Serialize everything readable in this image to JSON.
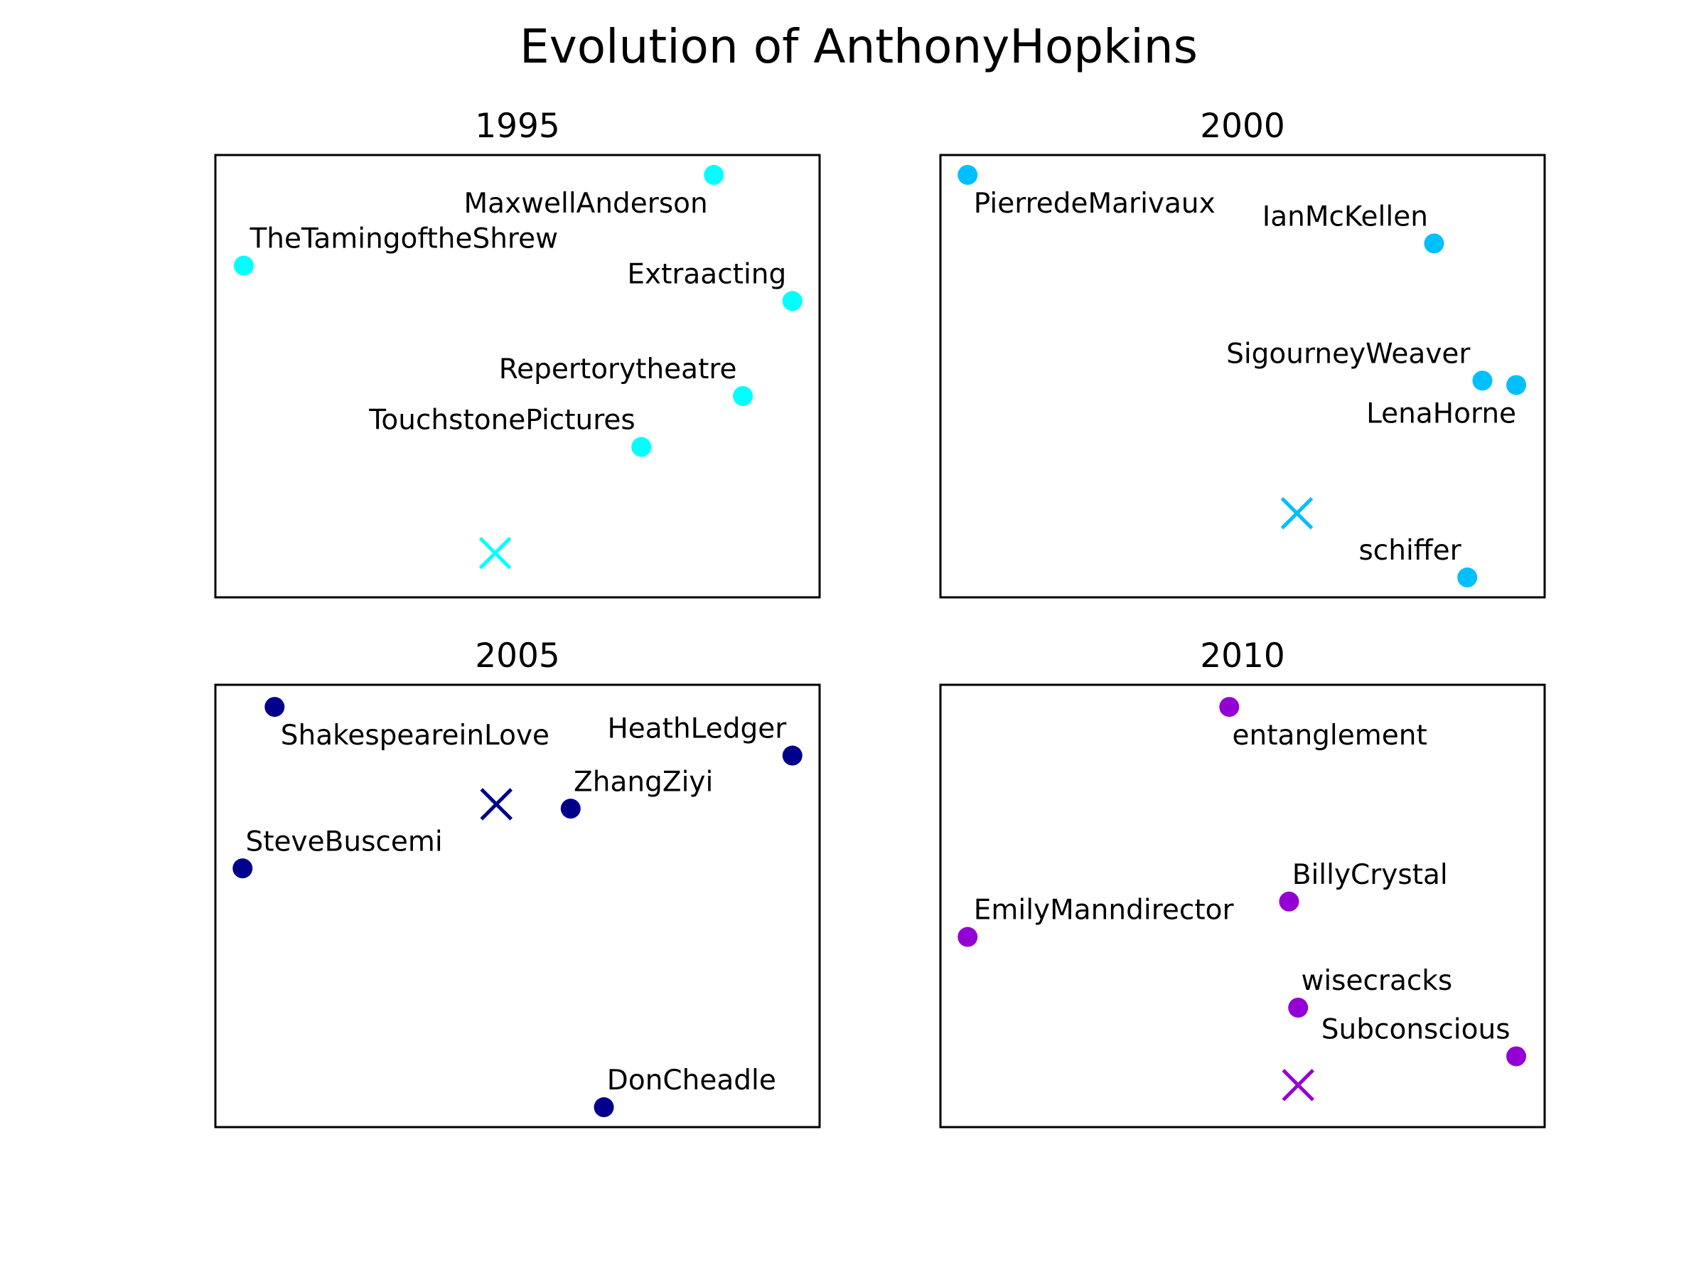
{
  "chart_data": {
    "type": "scatter",
    "title": "Evolution of AnthonyHopkins",
    "grid": false,
    "axes_visible": false,
    "panels": [
      {
        "title": "1995",
        "color": "#00FFFF",
        "xlim": [
          0,
          1
        ],
        "ylim": [
          0,
          1
        ],
        "target": {
          "x": 0.463,
          "y": 0.1
        },
        "points": [
          {
            "label": "MaxwellAnderson",
            "x": 0.825,
            "y": 0.955,
            "anchor": "end",
            "dx": -0.01,
            "dy": -0.04
          },
          {
            "label": "TheTamingoftheShrew",
            "x": 0.047,
            "y": 0.75,
            "anchor": "start",
            "dx": 0.01,
            "dy": 0.04
          },
          {
            "label": "Extraacting",
            "x": 0.955,
            "y": 0.67,
            "anchor": "end",
            "dx": -0.01,
            "dy": 0.04
          },
          {
            "label": "Repertorytheatre",
            "x": 0.873,
            "y": 0.455,
            "anchor": "end",
            "dx": -0.01,
            "dy": 0.04
          },
          {
            "label": "TouchstonePictures",
            "x": 0.705,
            "y": 0.34,
            "anchor": "end",
            "dx": -0.01,
            "dy": 0.04
          }
        ]
      },
      {
        "title": "2000",
        "color": "#00BFFF",
        "xlim": [
          0,
          1
        ],
        "ylim": [
          0,
          1
        ],
        "target": {
          "x": 0.59,
          "y": 0.19
        },
        "points": [
          {
            "label": "PierredeMarivaux",
            "x": 0.045,
            "y": 0.955,
            "anchor": "start",
            "dx": 0.01,
            "dy": -0.04
          },
          {
            "label": "IanMcKellen",
            "x": 0.817,
            "y": 0.8,
            "anchor": "end",
            "dx": -0.01,
            "dy": 0.04
          },
          {
            "label": "SigourneyWeaver",
            "x": 0.897,
            "y": 0.49,
            "anchor": "end",
            "dx": -0.02,
            "dy": 0.04
          },
          {
            "label": "LenaHorne",
            "x": 0.953,
            "y": 0.48,
            "anchor": "end",
            "dx": 0.0,
            "dy": -0.04
          },
          {
            "label": "schiffer",
            "x": 0.872,
            "y": 0.045,
            "anchor": "end",
            "dx": -0.01,
            "dy": 0.04
          }
        ]
      },
      {
        "title": "2005",
        "color": "#00008B",
        "xlim": [
          0,
          1
        ],
        "ylim": [
          0,
          1
        ],
        "target": {
          "x": 0.465,
          "y": 0.73
        },
        "points": [
          {
            "label": "ShakespeareinLove",
            "x": 0.098,
            "y": 0.95,
            "anchor": "start",
            "dx": 0.01,
            "dy": -0.04
          },
          {
            "label": "HeathLedger",
            "x": 0.955,
            "y": 0.84,
            "anchor": "end",
            "dx": -0.01,
            "dy": 0.04
          },
          {
            "label": "ZhangZiyi",
            "x": 0.588,
            "y": 0.72,
            "anchor": "start",
            "dx": 0.005,
            "dy": 0.04
          },
          {
            "label": "SteveBuscemi",
            "x": 0.045,
            "y": 0.585,
            "anchor": "start",
            "dx": 0.005,
            "dy": 0.04
          },
          {
            "label": "DonCheadle",
            "x": 0.643,
            "y": 0.045,
            "anchor": "start",
            "dx": 0.005,
            "dy": 0.04
          }
        ]
      },
      {
        "title": "2010",
        "color": "#9400D3",
        "xlim": [
          0,
          1
        ],
        "ylim": [
          0,
          1
        ],
        "target": {
          "x": 0.592,
          "y": 0.095
        },
        "points": [
          {
            "label": "entanglement",
            "x": 0.478,
            "y": 0.95,
            "anchor": "start",
            "dx": 0.005,
            "dy": -0.04
          },
          {
            "label": "BillyCrystal",
            "x": 0.577,
            "y": 0.51,
            "anchor": "start",
            "dx": 0.005,
            "dy": 0.04
          },
          {
            "label": "EmilyManndirector",
            "x": 0.045,
            "y": 0.43,
            "anchor": "start",
            "dx": 0.01,
            "dy": 0.04
          },
          {
            "label": "wisecracks",
            "x": 0.592,
            "y": 0.27,
            "anchor": "start",
            "dx": 0.005,
            "dy": 0.04
          },
          {
            "label": "Subconscious",
            "x": 0.953,
            "y": 0.16,
            "anchor": "end",
            "dx": -0.01,
            "dy": 0.04
          }
        ]
      }
    ]
  }
}
